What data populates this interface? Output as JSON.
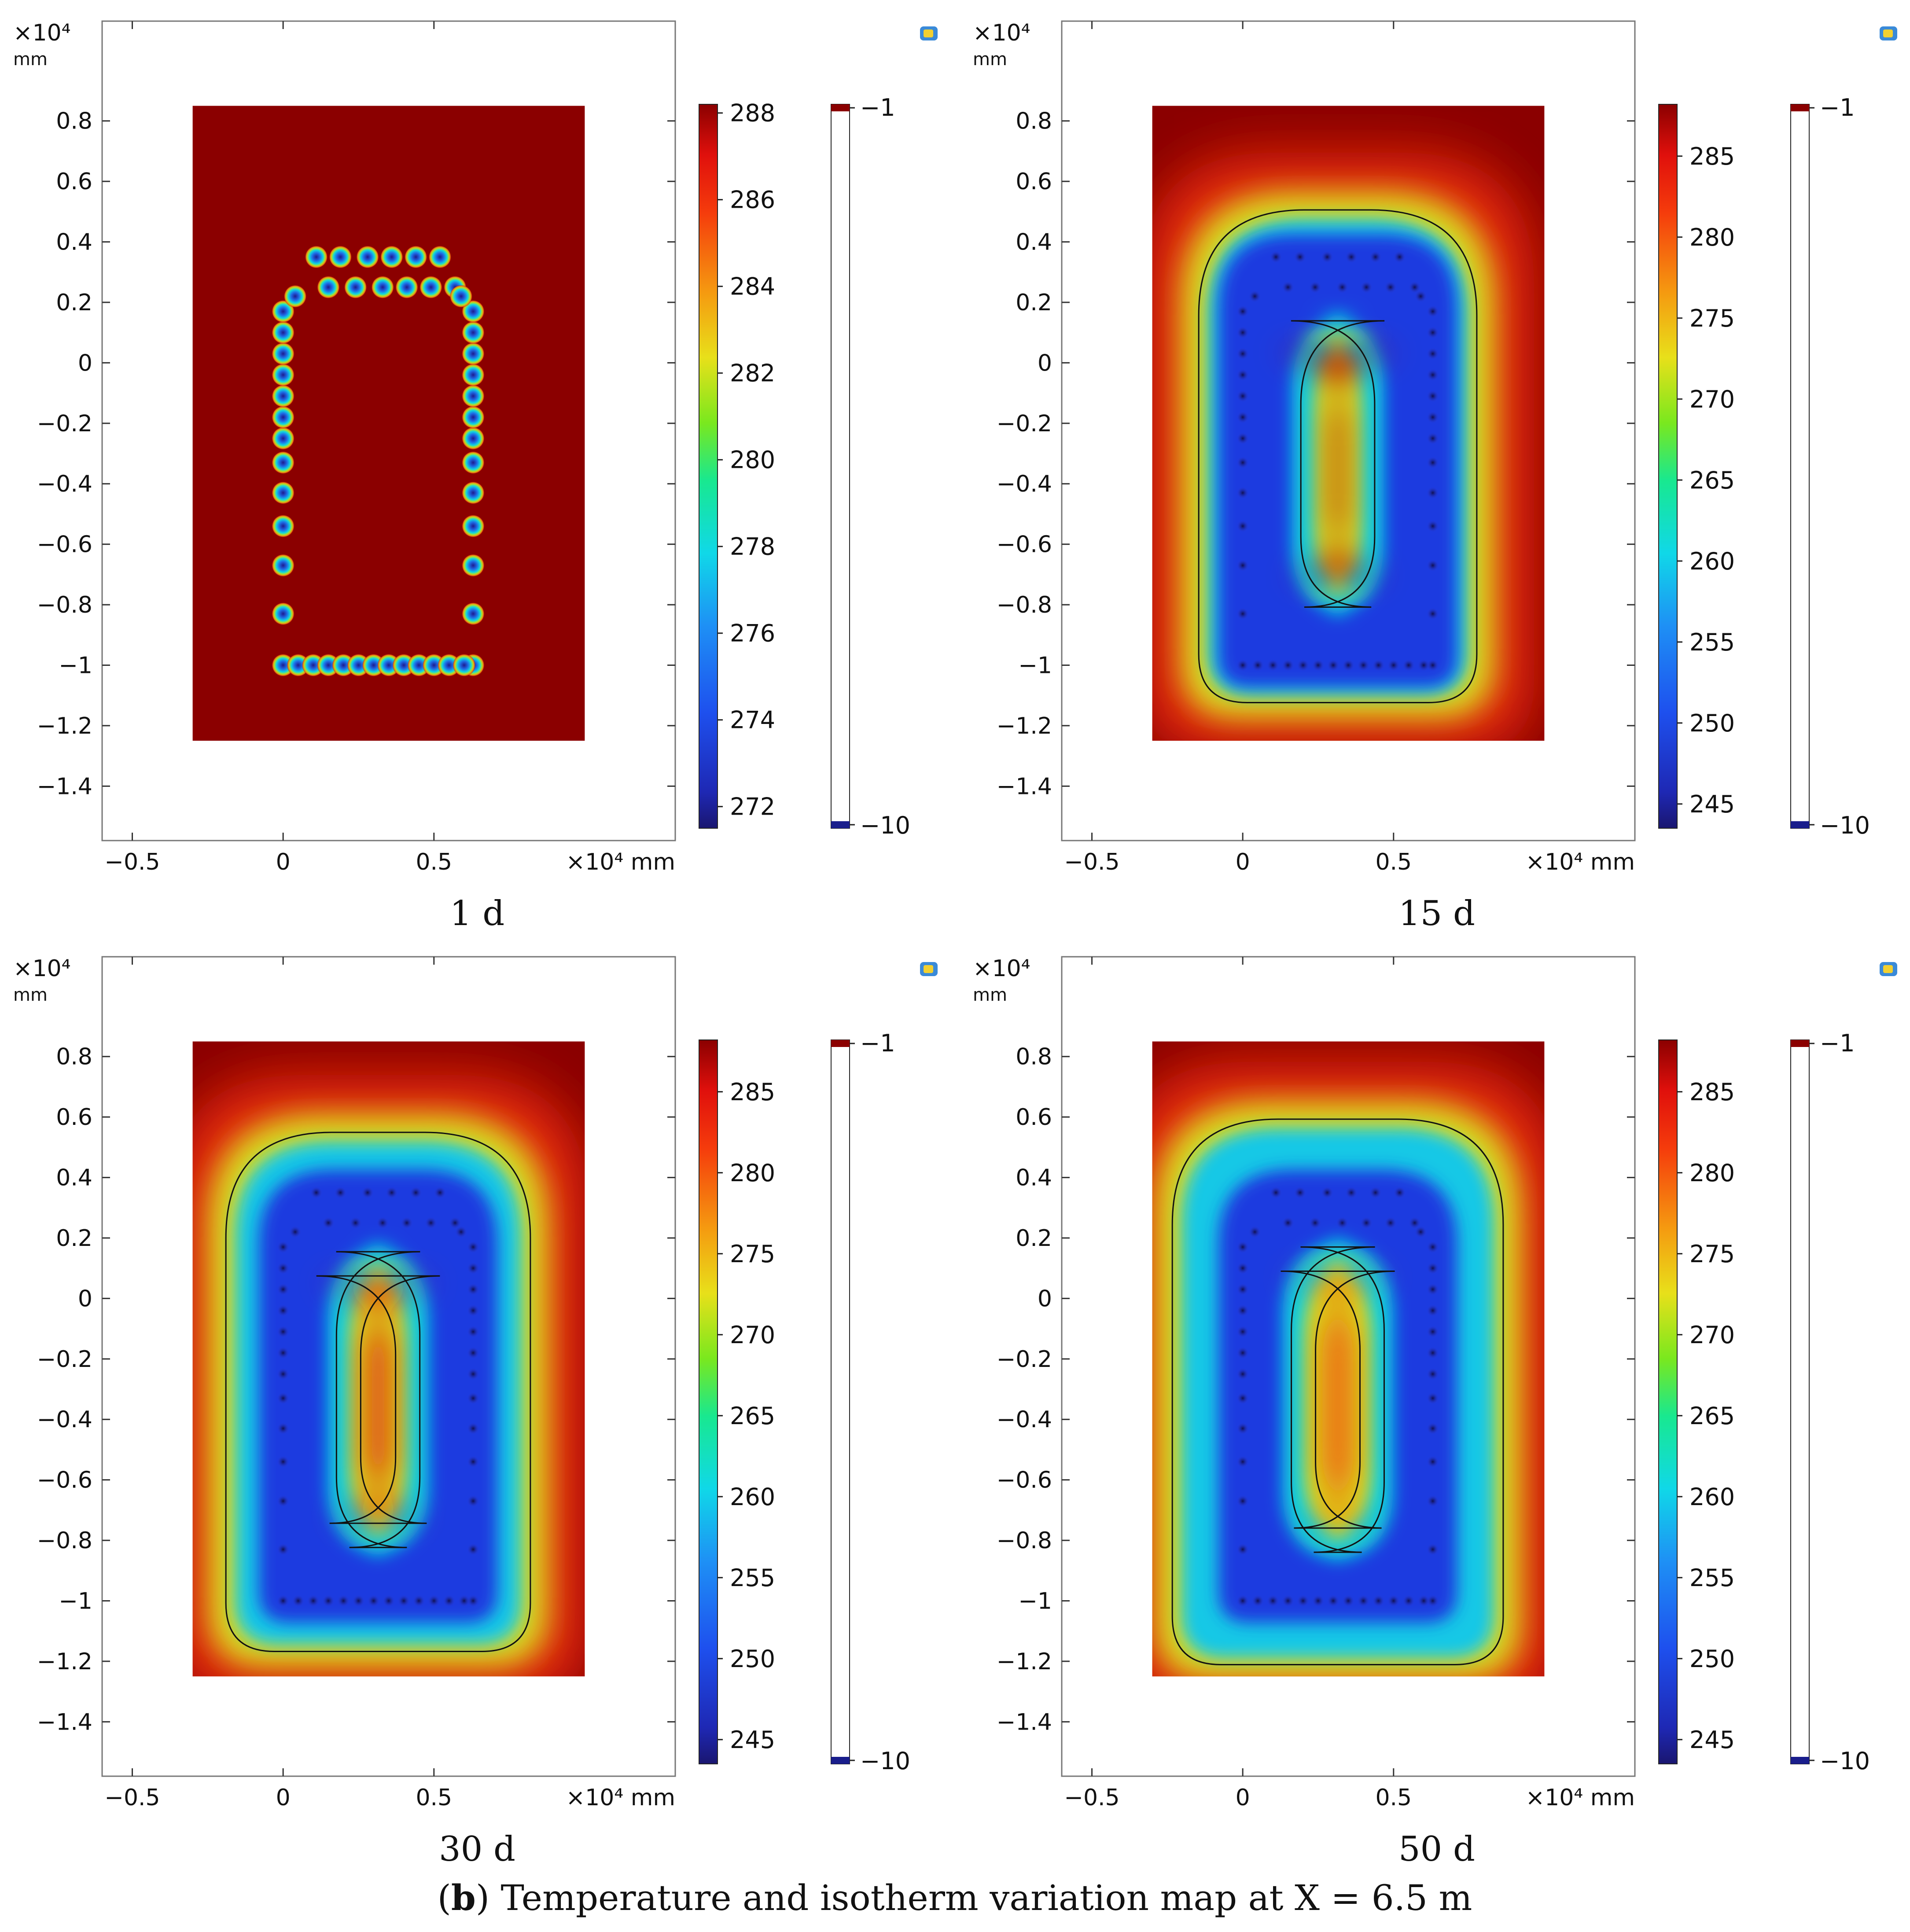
{
  "figure": {
    "caption_letter": "b",
    "caption_open": "(",
    "caption_close": ")",
    "caption_rest": " Temperature and isotherm variation map at X = 6.5 m"
  },
  "colors": {
    "warm": "#8b0000",
    "cold": "#1a1e8c",
    "frame": "#777777"
  },
  "chart_data": [
    {
      "type": "heatmap",
      "label": "1 d",
      "x_unit_label": "×10⁴ mm",
      "y_unit_label": "×10⁴",
      "y_unit_sub": "mm",
      "x_ticks": [
        -0.5,
        0,
        0.5
      ],
      "x_tick_labels": [
        "−0.5",
        "0",
        "0.5"
      ],
      "y_ticks": [
        0.8,
        0.6,
        0.4,
        0.2,
        0,
        -0.2,
        -0.4,
        -0.6,
        -0.8,
        -1,
        -1.2,
        -1.4
      ],
      "y_tick_labels": [
        "0.8",
        "0.6",
        "0.4",
        "0.2",
        "0",
        "−0.2",
        "−0.4",
        "−0.6",
        "−0.8",
        "−1",
        "−1.2",
        "−1.4"
      ],
      "xlim": [
        -0.6,
        1.3
      ],
      "ylim": [
        -1.58,
        1.13
      ],
      "domain": {
        "x": [
          -0.3,
          1.0
        ],
        "y": [
          -1.25,
          0.85
        ]
      },
      "temperature_range": [
        271.5,
        288.2
      ],
      "temperature_ticks": [
        288,
        286,
        284,
        282,
        280,
        278,
        276,
        274,
        272
      ],
      "temperature_tick_labels": [
        "288",
        "286",
        "284",
        "282",
        "280",
        "278",
        "276",
        "274",
        "272"
      ],
      "isotherm_range": [
        -10,
        -1
      ],
      "isotherm_tick_labels": [
        "−1",
        "−10"
      ]
    },
    {
      "type": "heatmap",
      "label": "15 d",
      "x_unit_label": "×10⁴ mm",
      "y_unit_label": "×10⁴",
      "y_unit_sub": "mm",
      "x_ticks": [
        -0.5,
        0,
        0.5
      ],
      "x_tick_labels": [
        "−0.5",
        "0",
        "0.5"
      ],
      "y_ticks": [
        0.8,
        0.6,
        0.4,
        0.2,
        0,
        -0.2,
        -0.4,
        -0.6,
        -0.8,
        -1,
        -1.2,
        -1.4
      ],
      "y_tick_labels": [
        "0.8",
        "0.6",
        "0.4",
        "0.2",
        "0",
        "−0.2",
        "−0.4",
        "−0.6",
        "−0.8",
        "−1",
        "−1.2",
        "−1.4"
      ],
      "xlim": [
        -0.6,
        1.3
      ],
      "ylim": [
        -1.58,
        1.13
      ],
      "domain": {
        "x": [
          -0.3,
          1.0
        ],
        "y": [
          -1.25,
          0.85
        ]
      },
      "temperature_range": [
        243.5,
        288.2
      ],
      "temperature_ticks": [
        285,
        280,
        275,
        270,
        265,
        260,
        255,
        250,
        245
      ],
      "temperature_tick_labels": [
        "285",
        "280",
        "275",
        "270",
        "265",
        "260",
        "255",
        "250",
        "245"
      ],
      "isotherm_range": [
        -10,
        -1
      ],
      "isotherm_tick_labels": [
        "−1",
        "−10"
      ]
    },
    {
      "type": "heatmap",
      "label": "30 d",
      "x_unit_label": "×10⁴ mm",
      "y_unit_label": "×10⁴",
      "y_unit_sub": "mm",
      "x_ticks": [
        -0.5,
        0,
        0.5
      ],
      "x_tick_labels": [
        "−0.5",
        "0",
        "0.5"
      ],
      "y_ticks": [
        0.8,
        0.6,
        0.4,
        0.2,
        0,
        -0.2,
        -0.4,
        -0.6,
        -0.8,
        -1,
        -1.2,
        -1.4
      ],
      "y_tick_labels": [
        "0.8",
        "0.6",
        "0.4",
        "0.2",
        "0",
        "−0.2",
        "−0.4",
        "−0.6",
        "−0.8",
        "−1",
        "−1.2",
        "−1.4"
      ],
      "xlim": [
        -0.6,
        1.3
      ],
      "ylim": [
        -1.58,
        1.13
      ],
      "domain": {
        "x": [
          -0.3,
          1.0
        ],
        "y": [
          -1.25,
          0.85
        ]
      },
      "temperature_range": [
        243.5,
        288.2
      ],
      "temperature_ticks": [
        285,
        280,
        275,
        270,
        265,
        260,
        255,
        250,
        245
      ],
      "temperature_tick_labels": [
        "285",
        "280",
        "275",
        "270",
        "265",
        "260",
        "255",
        "250",
        "245"
      ],
      "isotherm_range": [
        -10,
        -1
      ],
      "isotherm_tick_labels": [
        "−1",
        "−10"
      ]
    },
    {
      "type": "heatmap",
      "label": "50 d",
      "x_unit_label": "×10⁴ mm",
      "y_unit_label": "×10⁴",
      "y_unit_sub": "mm",
      "x_ticks": [
        -0.5,
        0,
        0.5
      ],
      "x_tick_labels": [
        "−0.5",
        "0",
        "0.5"
      ],
      "y_ticks": [
        0.8,
        0.6,
        0.4,
        0.2,
        0,
        -0.2,
        -0.4,
        -0.6,
        -0.8,
        -1,
        -1.2,
        -1.4
      ],
      "y_tick_labels": [
        "0.8",
        "0.6",
        "0.4",
        "0.2",
        "0",
        "−0.2",
        "−0.4",
        "−0.6",
        "−0.8",
        "−1",
        "−1.2",
        "−1.4"
      ],
      "xlim": [
        -0.6,
        1.3
      ],
      "ylim": [
        -1.58,
        1.13
      ],
      "domain": {
        "x": [
          -0.3,
          1.0
        ],
        "y": [
          -1.25,
          0.85
        ]
      },
      "temperature_range": [
        243.5,
        288.2
      ],
      "temperature_ticks": [
        285,
        280,
        275,
        270,
        265,
        260,
        255,
        250,
        245
      ],
      "temperature_tick_labels": [
        "285",
        "280",
        "275",
        "270",
        "265",
        "260",
        "255",
        "250",
        "245"
      ],
      "isotherm_range": [
        -10,
        -1
      ],
      "isotherm_tick_labels": [
        "−1",
        "−10"
      ]
    }
  ]
}
